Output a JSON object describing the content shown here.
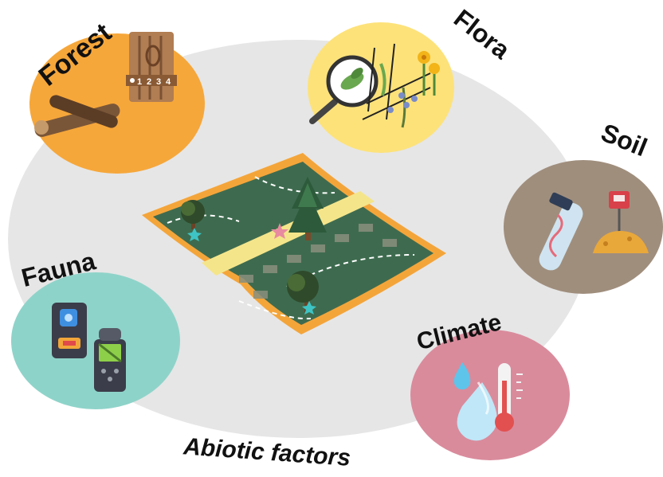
{
  "labels": {
    "forest": "Forest",
    "flora": "Flora",
    "soil": "Soil",
    "fauna": "Fauna",
    "climate": "Climate",
    "abiotic": "Abiotic factors",
    "ruler_marks": [
      "1",
      "2",
      "3",
      "4"
    ]
  },
  "colors": {
    "background_ellipse": "#e6e6e6",
    "forest_circle": "#f6a73a",
    "flora_circle": "#fde27a",
    "soil_circle": "#a08e7d",
    "fauna_circle": "#8ed3c9",
    "climate_circle": "#d98b9c",
    "map_green": "#3e6b4f",
    "map_border": "#f4a53a",
    "map_path": "#f5e58a"
  },
  "icons": {
    "forest": [
      "wood-log-icon",
      "tree-trunk-ruler-icon"
    ],
    "flora": [
      "magnifier-leaf-icon",
      "plant-quadrat-icon",
      "flowers-icon"
    ],
    "soil": [
      "dna-test-tube-icon",
      "soil-probe-icon"
    ],
    "fauna": [
      "walkie-talkie-icon",
      "audio-recorder-icon"
    ],
    "climate": [
      "water-drops-icon",
      "thermometer-icon"
    ],
    "center": [
      "landscape-map-icon"
    ]
  }
}
